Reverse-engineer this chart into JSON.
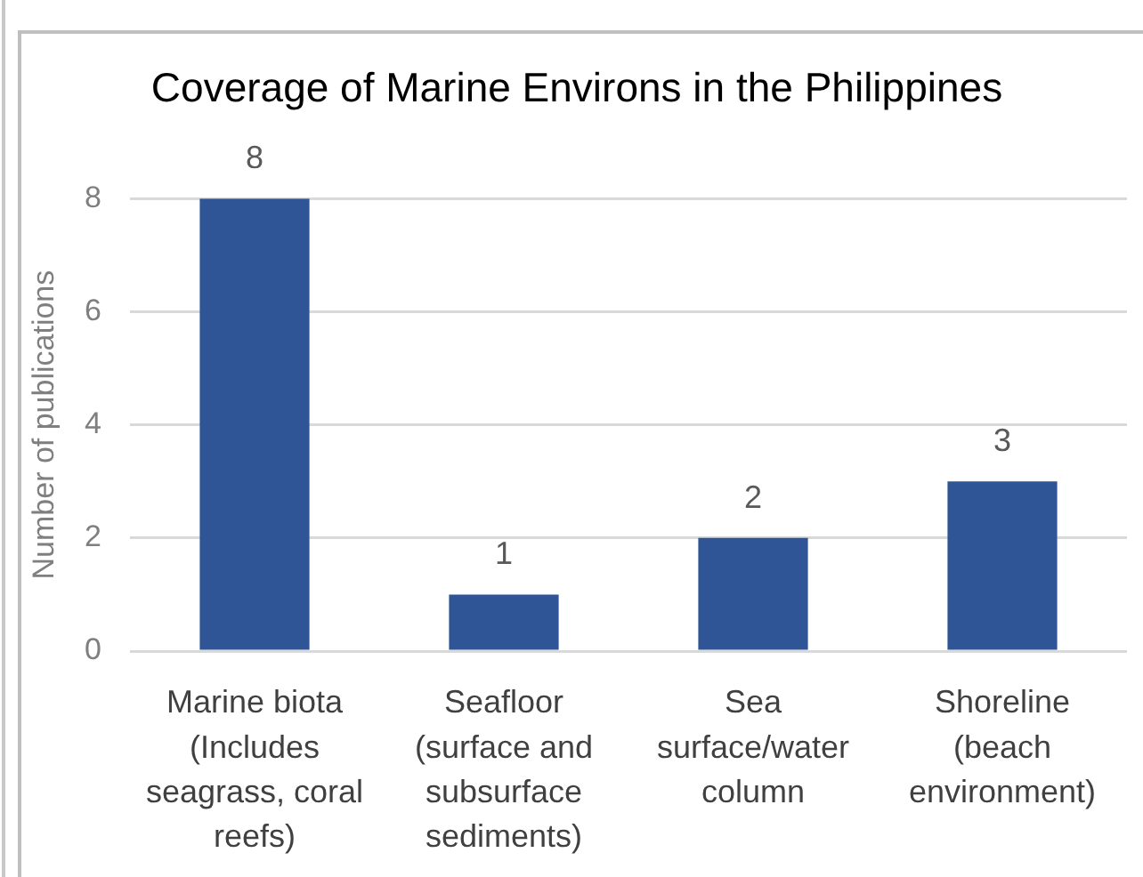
{
  "chart_data": {
    "type": "bar",
    "title": "Coverage of Marine Environs in the Philippines",
    "ylabel": "Number of publications",
    "categories": [
      "Marine biota (Includes seagrass, coral reefs)",
      "Seafloor (surface and subsurface sediments)",
      "Sea surface/water column",
      "Shoreline (beach environment)"
    ],
    "values": [
      8,
      1,
      2,
      3
    ],
    "color": "#2f5597",
    "ylim": [
      0,
      8
    ],
    "yticks": [
      0,
      2,
      4,
      6,
      8
    ],
    "grid": "y",
    "data_labels": true
  }
}
